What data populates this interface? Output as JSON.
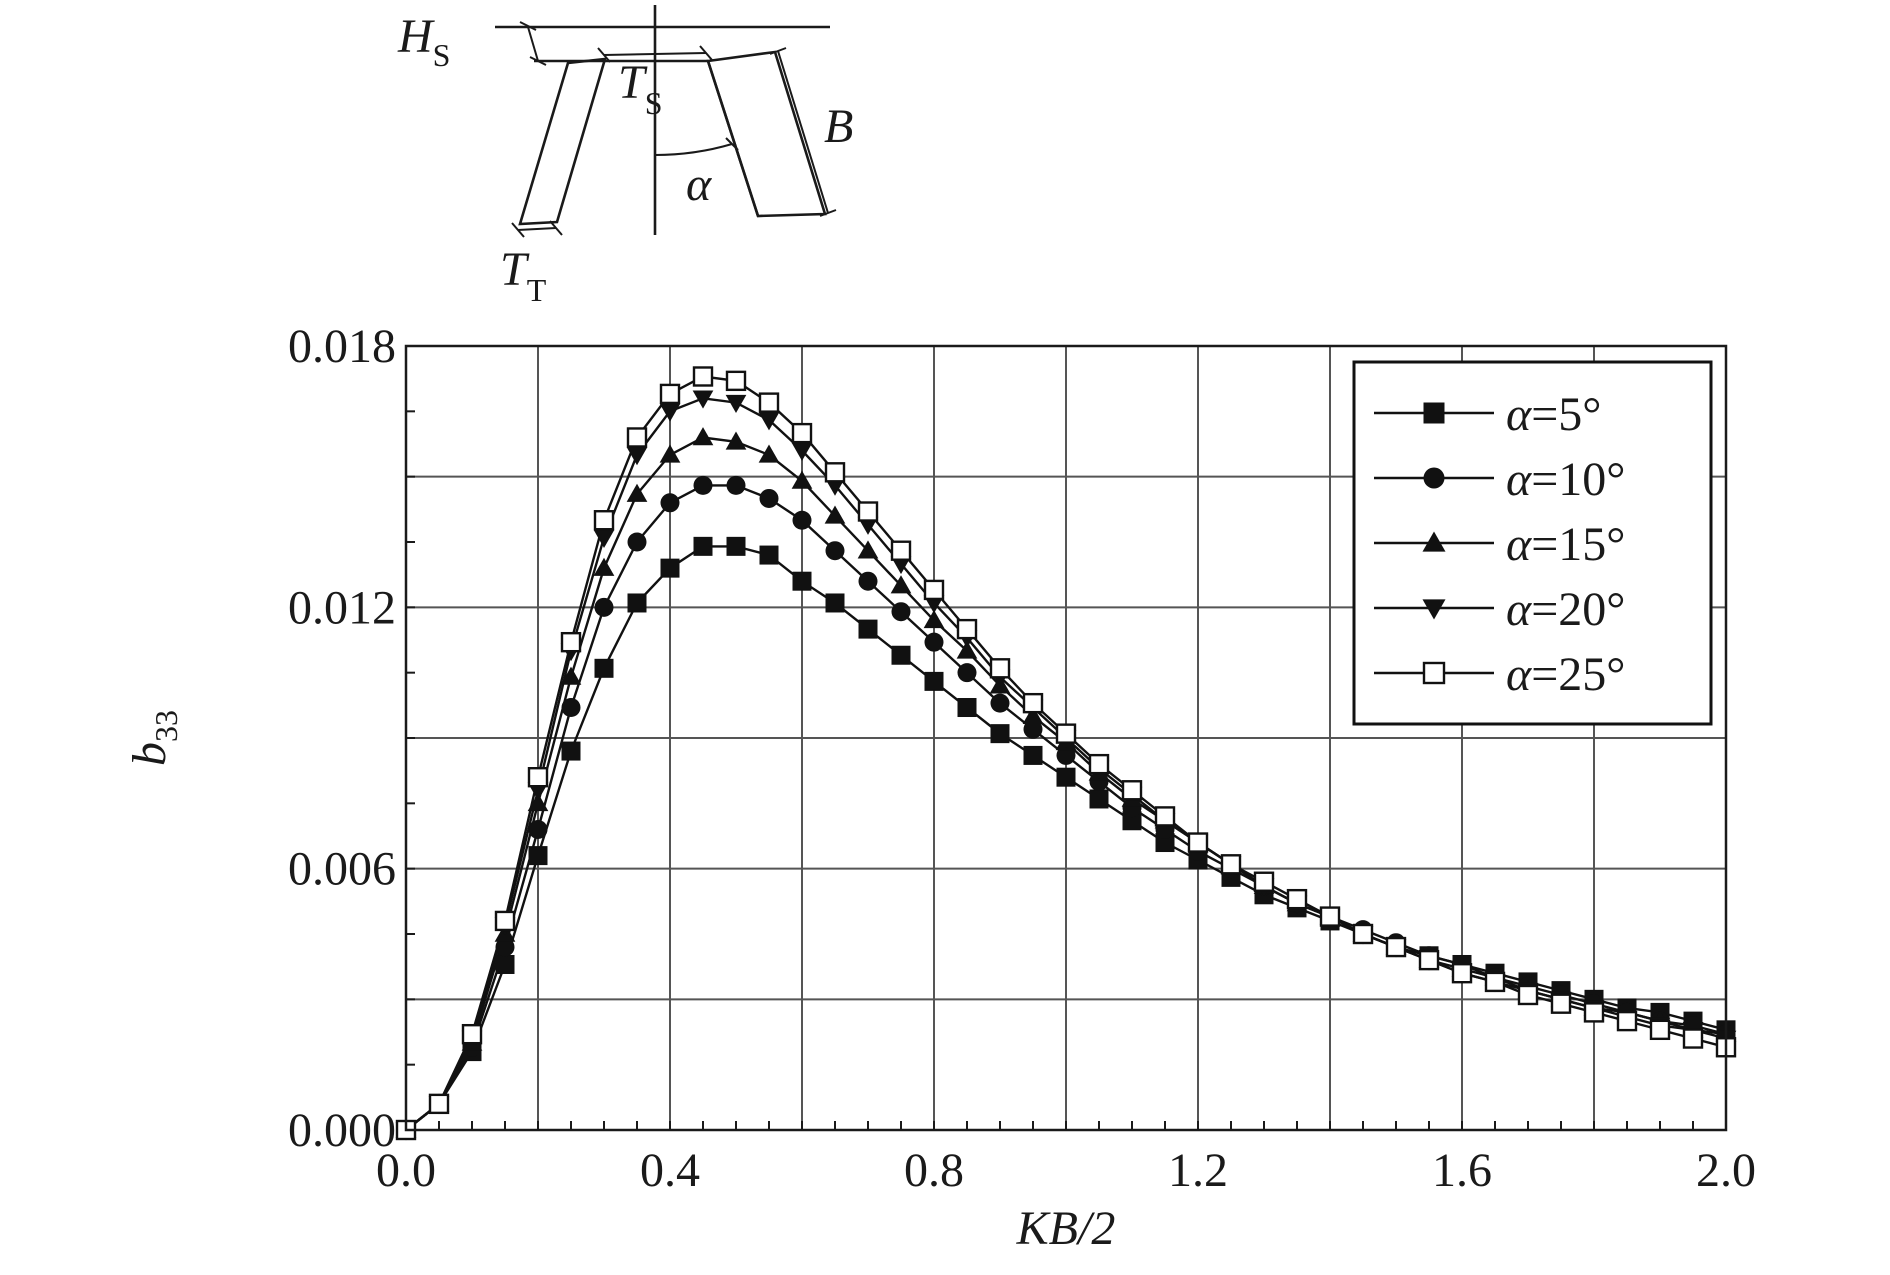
{
  "diagram": {
    "labels": {
      "hs": {
        "main": "H",
        "sub": "S"
      },
      "ts": {
        "main": "T",
        "sub": "S"
      },
      "tt": {
        "main": "T",
        "sub": "T"
      },
      "b": "B",
      "alpha": "α"
    }
  },
  "chart_data": {
    "type": "line",
    "title": "",
    "xlabel": "KB/2",
    "ylabel": {
      "main": "b",
      "sub": "33"
    },
    "xlim": [
      0.0,
      2.0
    ],
    "ylim": [
      0.0,
      0.018
    ],
    "xticks": [
      "0.0",
      "0.4",
      "0.8",
      "1.2",
      "1.6",
      "2.0"
    ],
    "yticks": [
      "0.000",
      "0.006",
      "0.012",
      "0.018"
    ],
    "grid": true,
    "legend_position": "top-right",
    "x": [
      0.0,
      0.05,
      0.1,
      0.15,
      0.2,
      0.25,
      0.3,
      0.35,
      0.4,
      0.45,
      0.5,
      0.55,
      0.6,
      0.65,
      0.7,
      0.75,
      0.8,
      0.85,
      0.9,
      0.95,
      1.0,
      1.05,
      1.1,
      1.15,
      1.2,
      1.25,
      1.3,
      1.35,
      1.4,
      1.45,
      1.5,
      1.55,
      1.6,
      1.65,
      1.7,
      1.75,
      1.8,
      1.85,
      1.9,
      1.95,
      2.0
    ],
    "series": [
      {
        "name": "α=5°",
        "marker": "square-filled",
        "values": [
          0.0,
          0.0006,
          0.0018,
          0.0038,
          0.0063,
          0.0087,
          0.0106,
          0.0121,
          0.0129,
          0.0134,
          0.0134,
          0.0132,
          0.0126,
          0.0121,
          0.0115,
          0.0109,
          0.0103,
          0.0097,
          0.0091,
          0.0086,
          0.0081,
          0.0076,
          0.0071,
          0.0066,
          0.0062,
          0.0058,
          0.0054,
          0.0051,
          0.0048,
          0.0045,
          0.0042,
          0.004,
          0.0038,
          0.0036,
          0.0034,
          0.0032,
          0.003,
          0.0028,
          0.0027,
          0.0025,
          0.0023
        ]
      },
      {
        "name": "α=10°",
        "marker": "circle-filled",
        "values": [
          0.0,
          0.0006,
          0.0019,
          0.0042,
          0.0069,
          0.0097,
          0.012,
          0.0135,
          0.0144,
          0.0148,
          0.0148,
          0.0145,
          0.014,
          0.0133,
          0.0126,
          0.0119,
          0.0112,
          0.0105,
          0.0098,
          0.0092,
          0.0086,
          0.008,
          0.0074,
          0.0069,
          0.0064,
          0.006,
          0.0056,
          0.0052,
          0.0049,
          0.0046,
          0.0043,
          0.004,
          0.0038,
          0.0035,
          0.0033,
          0.0031,
          0.0029,
          0.0027,
          0.0025,
          0.0024,
          0.0022
        ]
      },
      {
        "name": "α=15°",
        "marker": "triangle-up-filled",
        "values": [
          0.0,
          0.0006,
          0.002,
          0.0045,
          0.0075,
          0.0104,
          0.0129,
          0.0146,
          0.0155,
          0.0159,
          0.0158,
          0.0155,
          0.0149,
          0.0141,
          0.0133,
          0.0125,
          0.0117,
          0.011,
          0.0102,
          0.0095,
          0.0089,
          0.0082,
          0.0076,
          0.0071,
          0.0066,
          0.0061,
          0.0056,
          0.0052,
          0.0049,
          0.0045,
          0.0042,
          0.0039,
          0.0037,
          0.0035,
          0.0032,
          0.003,
          0.0028,
          0.0027,
          0.0025,
          0.0023,
          0.0022
        ]
      },
      {
        "name": "α=20°",
        "marker": "triangle-down-filled",
        "values": [
          0.0,
          0.0006,
          0.0021,
          0.0047,
          0.0078,
          0.011,
          0.0136,
          0.0155,
          0.0165,
          0.0168,
          0.0167,
          0.0163,
          0.0156,
          0.0148,
          0.0139,
          0.013,
          0.0121,
          0.0113,
          0.0104,
          0.0097,
          0.009,
          0.0083,
          0.0077,
          0.0071,
          0.0066,
          0.0061,
          0.0056,
          0.0052,
          0.0049,
          0.0045,
          0.0042,
          0.0039,
          0.0036,
          0.0034,
          0.0032,
          0.003,
          0.0028,
          0.0026,
          0.0024,
          0.0023,
          0.0021
        ]
      },
      {
        "name": "α=25°",
        "marker": "square-open",
        "values": [
          0.0,
          0.0006,
          0.0022,
          0.0048,
          0.0081,
          0.0112,
          0.014,
          0.0159,
          0.0169,
          0.0173,
          0.0172,
          0.0167,
          0.016,
          0.0151,
          0.0142,
          0.0133,
          0.0124,
          0.0115,
          0.0106,
          0.0098,
          0.0091,
          0.0084,
          0.0078,
          0.0072,
          0.0066,
          0.0061,
          0.0057,
          0.0053,
          0.0049,
          0.0045,
          0.0042,
          0.0039,
          0.0036,
          0.0034,
          0.0031,
          0.0029,
          0.0027,
          0.0025,
          0.0023,
          0.0021,
          0.0019
        ]
      }
    ]
  }
}
